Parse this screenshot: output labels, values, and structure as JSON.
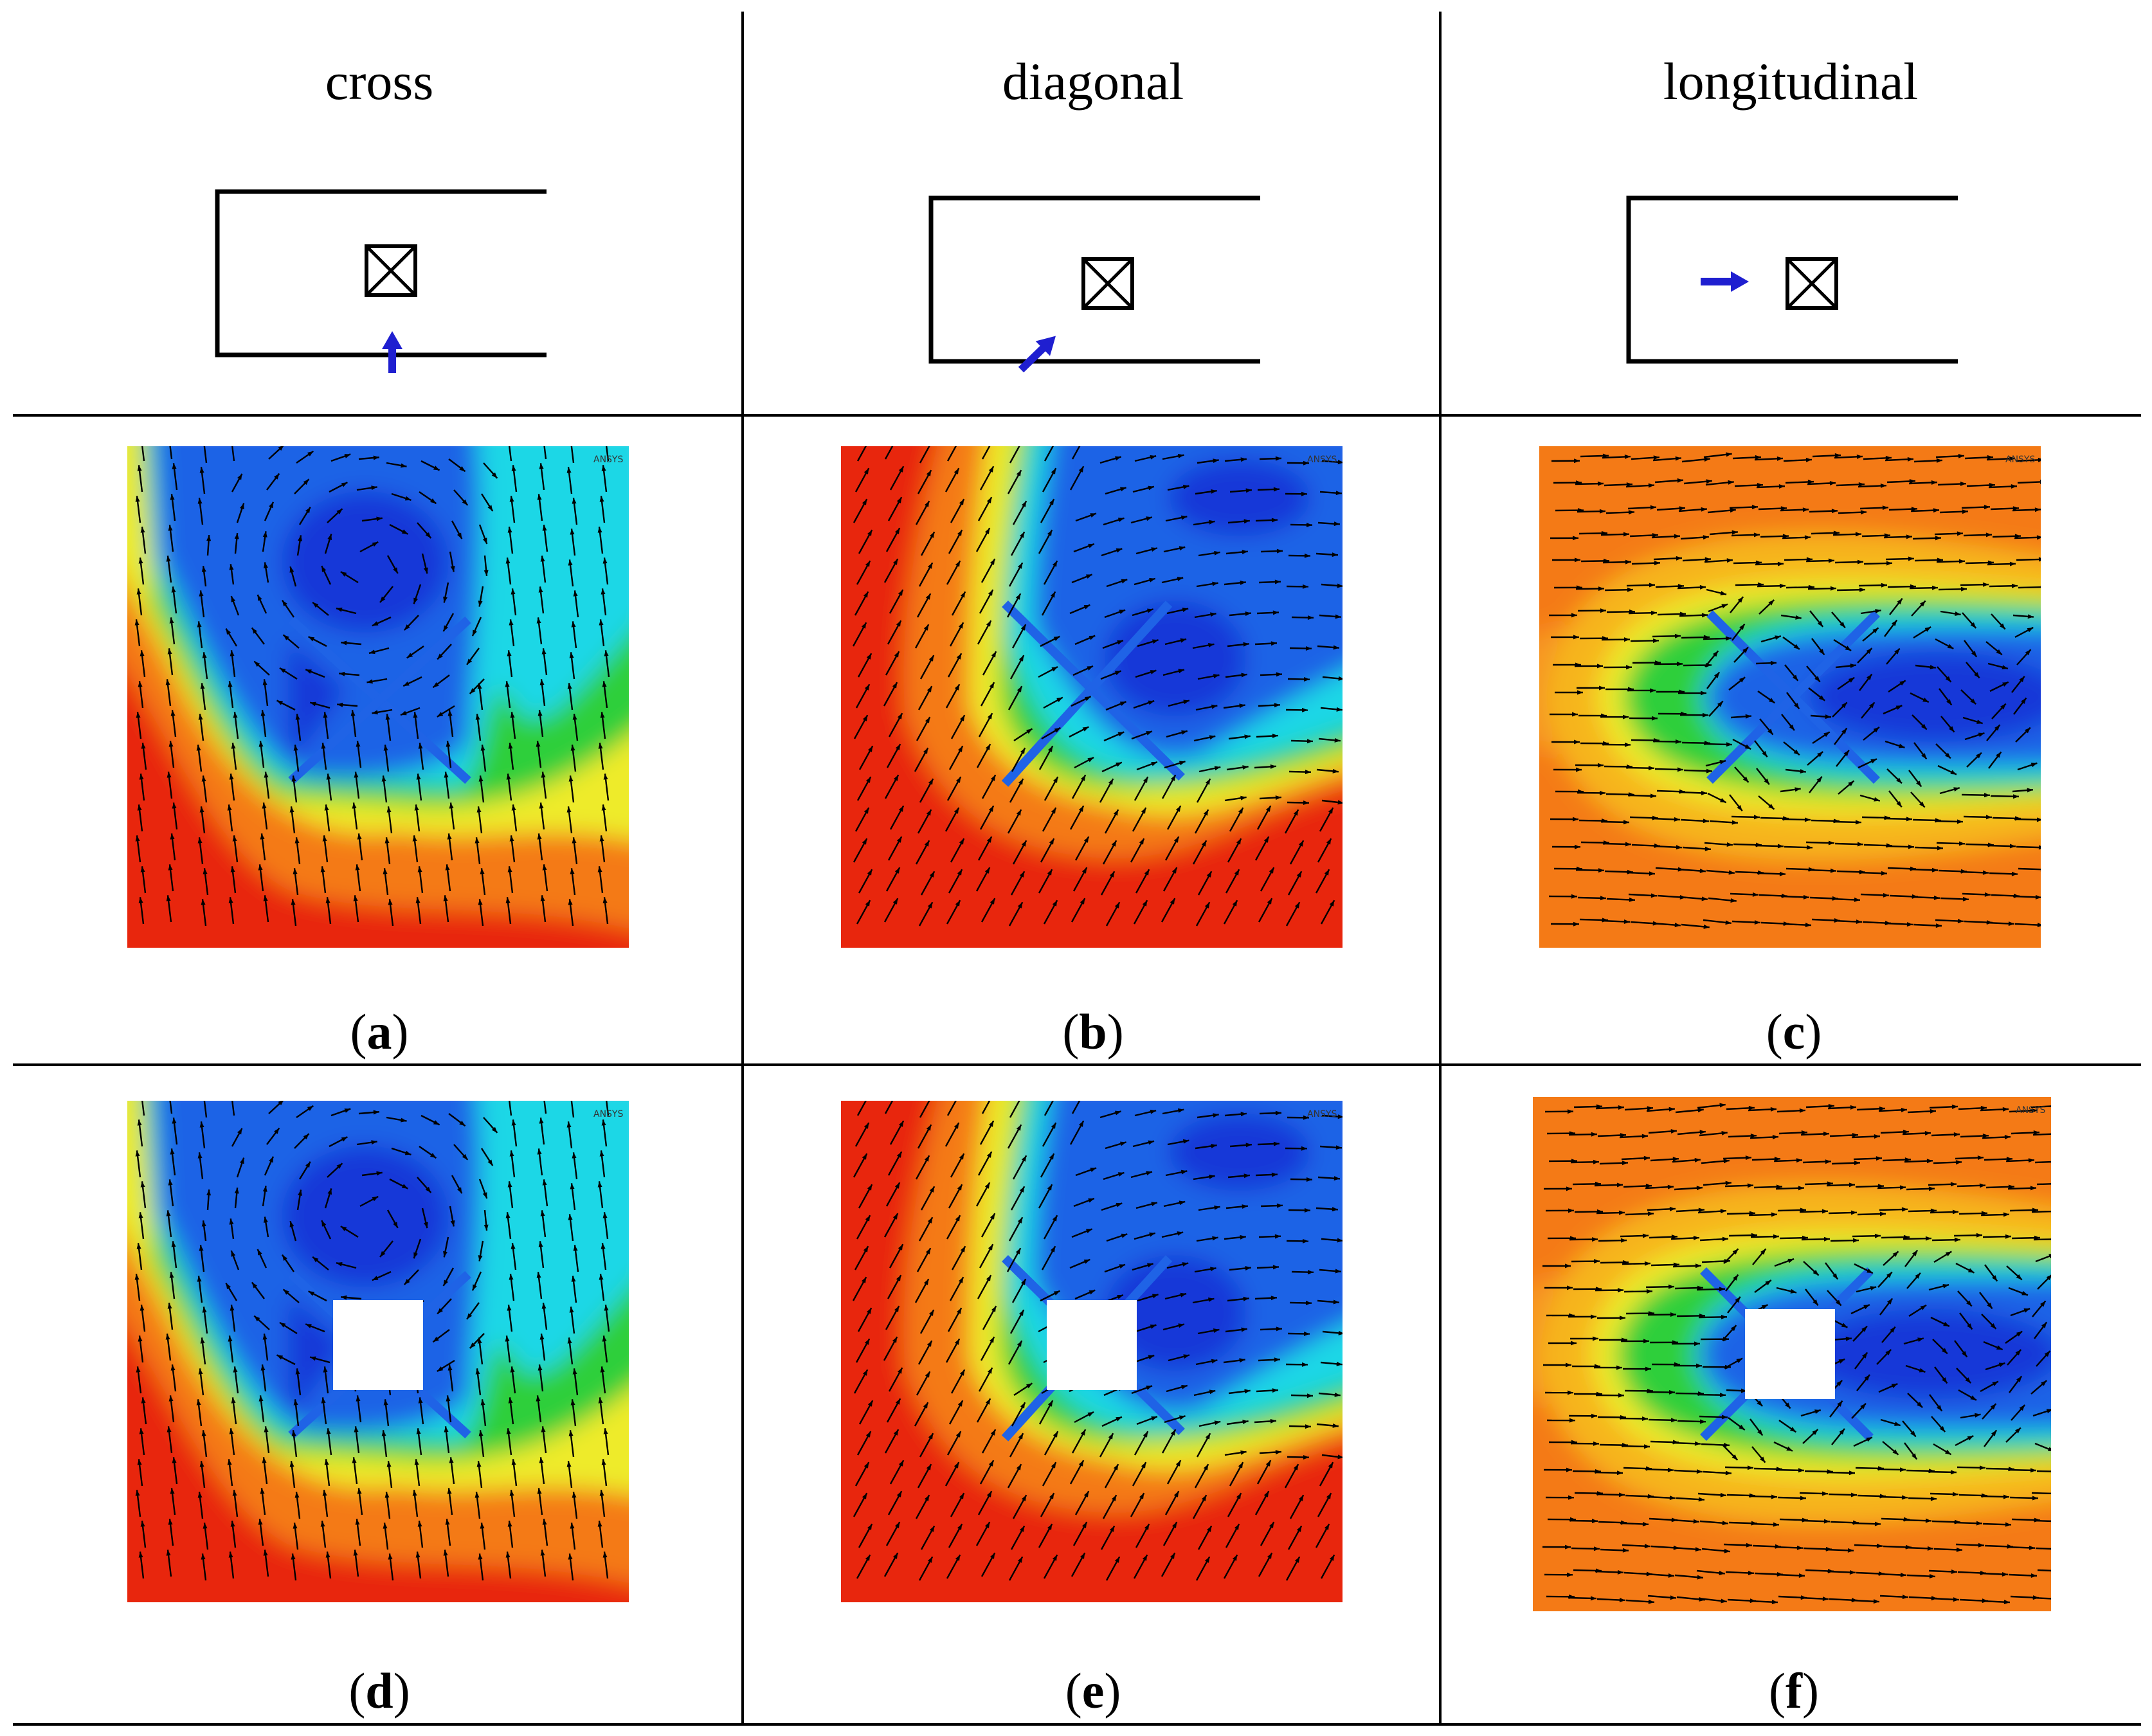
{
  "columns": [
    {
      "title": "cross",
      "direction": "cross"
    },
    {
      "title": "diagonal",
      "direction": "diagonal"
    },
    {
      "title": "longitudinal",
      "direction": "longitudinal"
    }
  ],
  "panels": [
    {
      "id": "a",
      "label": "a",
      "flow": "cross",
      "obstacle": "x"
    },
    {
      "id": "b",
      "label": "b",
      "flow": "diagonal",
      "obstacle": "x"
    },
    {
      "id": "c",
      "label": "c",
      "flow": "longitudinal",
      "obstacle": "x"
    },
    {
      "id": "d",
      "label": "d",
      "flow": "cross",
      "obstacle": "box"
    },
    {
      "id": "e",
      "label": "e",
      "flow": "diagonal",
      "obstacle": "box"
    },
    {
      "id": "f",
      "label": "f",
      "flow": "longitudinal",
      "obstacle": "box"
    }
  ],
  "watermark": "ANSYS",
  "colors": {
    "red": "#e8250f",
    "orange": "#f47a17",
    "yellow": "#eeeb2a",
    "green": "#2ecf3a",
    "cyan": "#1fd7e6",
    "blue": "#1f63e6",
    "deepblue": "#1238d8",
    "arrow_blue": "#1f1fd0"
  }
}
